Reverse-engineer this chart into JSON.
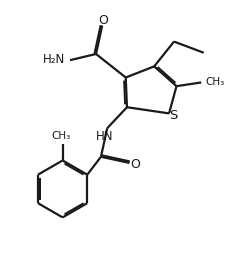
{
  "bg_color": "#ffffff",
  "line_color": "#1a1a1a",
  "line_width": 1.6,
  "font_size": 8,
  "figsize": [
    2.49,
    2.59
  ],
  "dpi": 100,
  "xlim": [
    0,
    10
  ],
  "ylim": [
    0,
    10.4
  ]
}
